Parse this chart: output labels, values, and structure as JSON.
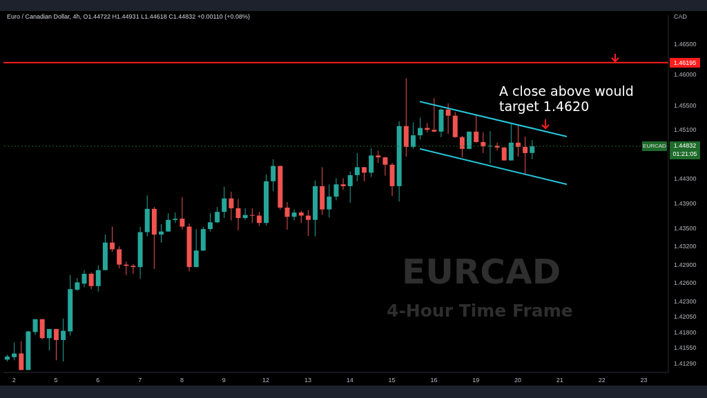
{
  "chart_data": {
    "type": "candlestick",
    "subtitle": "Euro / Canadian Dollar, 4h, O1.44722 H1.44931 L1.44618 C1.44832 +0.00110 (+0.08%)",
    "ylabel": "CAD",
    "categories": [
      null,
      "2",
      null,
      null,
      null,
      null,
      null,
      "5",
      null,
      null,
      null,
      null,
      null,
      "6",
      null,
      null,
      null,
      null,
      null,
      "7",
      null,
      null,
      null,
      null,
      null,
      "8",
      null,
      null,
      null,
      null,
      null,
      "9",
      null,
      null,
      null,
      null,
      null,
      "12",
      null,
      null,
      null,
      null,
      null,
      "13",
      null,
      null,
      null,
      null,
      null,
      "14",
      null,
      null,
      null,
      null,
      null,
      "15",
      null,
      null,
      null,
      null,
      null,
      "16",
      null,
      null,
      null,
      null,
      null,
      "19",
      null,
      null,
      null,
      null,
      null,
      "20",
      null,
      null,
      null,
      null,
      null,
      "21",
      null,
      null,
      null,
      null,
      null,
      "22",
      null,
      null,
      null,
      null,
      null,
      "23",
      null,
      null,
      null
    ],
    "ohlc": [
      [
        1.4135,
        1.4143,
        1.4132,
        1.414
      ],
      [
        1.4139,
        1.4163,
        1.4134,
        1.4145
      ],
      [
        1.4145,
        1.4165,
        1.4118,
        1.4118
      ],
      [
        1.4118,
        1.4182,
        1.4118,
        1.4181
      ],
      [
        1.418,
        1.4201,
        1.4175,
        1.4201
      ],
      [
        1.4201,
        1.4201,
        1.4168,
        1.417
      ],
      [
        1.417,
        1.4185,
        1.415,
        1.4185
      ],
      [
        1.4185,
        1.4185,
        1.4134,
        1.4167
      ],
      [
        1.4167,
        1.4202,
        1.4132,
        1.4182
      ],
      [
        1.4181,
        1.4273,
        1.4174,
        1.425
      ],
      [
        1.4249,
        1.4268,
        1.4247,
        1.4261
      ],
      [
        1.4259,
        1.4281,
        1.4253,
        1.4275
      ],
      [
        1.4275,
        1.4277,
        1.425,
        1.4255
      ],
      [
        1.4255,
        1.4289,
        1.4246,
        1.4281
      ],
      [
        1.4281,
        1.4339,
        1.4281,
        1.4326
      ],
      [
        1.4326,
        1.4352,
        1.4311,
        1.4315
      ],
      [
        1.4315,
        1.432,
        1.4284,
        1.429
      ],
      [
        1.429,
        1.4295,
        1.4273,
        1.4288
      ],
      [
        1.4288,
        1.4291,
        1.4275,
        1.4286
      ],
      [
        1.4286,
        1.4352,
        1.4267,
        1.4343
      ],
      [
        1.4343,
        1.4403,
        1.4336,
        1.4381
      ],
      [
        1.4381,
        1.4384,
        1.4283,
        1.4339
      ],
      [
        1.4339,
        1.4356,
        1.4326,
        1.4344
      ],
      [
        1.4344,
        1.4374,
        1.4344,
        1.4363
      ],
      [
        1.4363,
        1.4375,
        1.4358,
        1.4365
      ],
      [
        1.4365,
        1.44,
        1.4347,
        1.4352
      ],
      [
        1.4352,
        1.4357,
        1.4279,
        1.4286
      ],
      [
        1.4286,
        1.4348,
        1.4286,
        1.4313
      ],
      [
        1.4313,
        1.4352,
        1.4312,
        1.4348
      ],
      [
        1.4348,
        1.4374,
        1.4344,
        1.4359
      ],
      [
        1.4359,
        1.4384,
        1.4358,
        1.4376
      ],
      [
        1.4376,
        1.4417,
        1.4366,
        1.4398
      ],
      [
        1.4398,
        1.4409,
        1.4362,
        1.4382
      ],
      [
        1.4382,
        1.4397,
        1.4346,
        1.4366
      ],
      [
        1.4366,
        1.4382,
        1.4363,
        1.4371
      ],
      [
        1.4371,
        1.4382,
        1.4358,
        1.437
      ],
      [
        1.437,
        1.4376,
        1.4353,
        1.4358
      ],
      [
        1.4358,
        1.4437,
        1.4354,
        1.4426
      ],
      [
        1.4426,
        1.4462,
        1.441,
        1.4451
      ],
      [
        1.4451,
        1.4451,
        1.438,
        1.4383
      ],
      [
        1.4383,
        1.4392,
        1.4347,
        1.4368
      ],
      [
        1.4368,
        1.438,
        1.4362,
        1.4375
      ],
      [
        1.4375,
        1.4378,
        1.4358,
        1.437
      ],
      [
        1.437,
        1.4379,
        1.4337,
        1.4363
      ],
      [
        1.4363,
        1.4427,
        1.4336,
        1.4418
      ],
      [
        1.4418,
        1.4449,
        1.4371,
        1.438
      ],
      [
        1.438,
        1.4421,
        1.4367,
        1.4401
      ],
      [
        1.4401,
        1.4431,
        1.4395,
        1.4421
      ],
      [
        1.4421,
        1.4431,
        1.4412,
        1.4418
      ],
      [
        1.4418,
        1.4442,
        1.4391,
        1.4436
      ],
      [
        1.4436,
        1.4472,
        1.4426,
        1.4449
      ],
      [
        1.4449,
        1.4449,
        1.4426,
        1.444
      ],
      [
        1.444,
        1.448,
        1.4433,
        1.4468
      ],
      [
        1.4468,
        1.4476,
        1.4456,
        1.4465
      ],
      [
        1.4465,
        1.4466,
        1.4435,
        1.4453
      ],
      [
        1.4453,
        1.4456,
        1.4402,
        1.4418
      ],
      [
        1.4418,
        1.4524,
        1.4393,
        1.4516
      ],
      [
        1.4516,
        1.4594,
        1.4466,
        1.4482
      ],
      [
        1.4482,
        1.4522,
        1.4479,
        1.4501
      ],
      [
        1.4501,
        1.453,
        1.4494,
        1.4513
      ],
      [
        1.4513,
        1.4521,
        1.4506,
        1.451
      ],
      [
        1.451,
        1.4562,
        1.4506,
        1.4507
      ],
      [
        1.4507,
        1.4545,
        1.4498,
        1.4543
      ],
      [
        1.4543,
        1.4553,
        1.4503,
        1.4533
      ],
      [
        1.4533,
        1.4539,
        1.4497,
        1.4498
      ],
      [
        1.4498,
        1.45,
        1.4465,
        1.4479
      ],
      [
        1.4479,
        1.4507,
        1.4478,
        1.4507
      ],
      [
        1.4507,
        1.4535,
        1.4489,
        1.449
      ],
      [
        1.449,
        1.4506,
        1.4472,
        1.4483
      ],
      [
        1.4483,
        1.4508,
        1.4455,
        1.4484
      ],
      [
        1.4484,
        1.4489,
        1.4476,
        1.4481
      ],
      [
        1.4481,
        1.4482,
        1.446,
        1.446
      ],
      [
        1.446,
        1.4519,
        1.446,
        1.4489
      ],
      [
        1.4489,
        1.4518,
        1.4466,
        1.4482
      ],
      [
        1.4482,
        1.4499,
        1.4438,
        1.4472
      ],
      [
        1.44722,
        1.44931,
        1.44618,
        1.44832
      ],
      null,
      null,
      null,
      null,
      null,
      null,
      null,
      null,
      null,
      null,
      null,
      null,
      null,
      null,
      null,
      null,
      null,
      null,
      null
    ],
    "series": [
      {
        "type": "line",
        "color": "#26c6da",
        "values": [
          null,
          null,
          null,
          null,
          null,
          null,
          null,
          null,
          null,
          null,
          null,
          null,
          null,
          null,
          null,
          null,
          null,
          null,
          null,
          null,
          null,
          null,
          null,
          null,
          null,
          null,
          null,
          null,
          null,
          null,
          null,
          null,
          null,
          null,
          null,
          null,
          null,
          null,
          null,
          null,
          null,
          null,
          null,
          null,
          null,
          null,
          null,
          null,
          null,
          null,
          null,
          null,
          null,
          null,
          null,
          null,
          null,
          null,
          null,
          1.4556,
          null,
          null,
          null,
          null,
          null,
          null,
          null,
          null,
          null,
          null,
          null,
          null,
          null,
          null,
          null,
          null,
          null,
          null,
          null,
          null,
          1.4499,
          null,
          null,
          null,
          null,
          null,
          null,
          null,
          null,
          null,
          null,
          null,
          null,
          null,
          null
        ]
      },
      {
        "type": "line",
        "color": "#26c6da",
        "values": [
          null,
          null,
          null,
          null,
          null,
          null,
          null,
          null,
          null,
          null,
          null,
          null,
          null,
          null,
          null,
          null,
          null,
          null,
          null,
          null,
          null,
          null,
          null,
          null,
          null,
          null,
          null,
          null,
          null,
          null,
          null,
          null,
          null,
          null,
          null,
          null,
          null,
          null,
          null,
          null,
          null,
          null,
          null,
          null,
          null,
          null,
          null,
          null,
          null,
          null,
          null,
          null,
          null,
          null,
          null,
          null,
          null,
          null,
          null,
          1.4479,
          null,
          null,
          null,
          null,
          null,
          null,
          null,
          null,
          null,
          null,
          null,
          null,
          null,
          null,
          null,
          null,
          null,
          null,
          null,
          null,
          1.4421,
          null,
          null,
          null,
          null,
          null,
          null,
          null,
          null,
          null,
          null,
          null,
          null,
          null,
          null
        ]
      }
    ],
    "ylim": [
      1.4114,
      1.4697
    ],
    "yticks": [
      {
        "value": 1.4129,
        "label": "1.41290"
      },
      {
        "value": 1.4155,
        "label": "1.41550"
      },
      {
        "value": 1.418,
        "label": "1.41800"
      },
      {
        "value": 1.4205,
        "label": "1.42050"
      },
      {
        "value": 1.423,
        "label": "1.42300"
      },
      {
        "value": 1.426,
        "label": "1.42600"
      },
      {
        "value": 1.429,
        "label": "1.42900"
      },
      {
        "value": 1.432,
        "label": "1.43200"
      },
      {
        "value": 1.435,
        "label": "1.43500"
      },
      {
        "value": 1.439,
        "label": "1.43900"
      },
      {
        "value": 1.443,
        "label": "1.44300"
      },
      {
        "value": 1.451,
        "label": "1.45100"
      },
      {
        "value": 1.455,
        "label": "1.45500"
      },
      {
        "value": 1.46,
        "label": "1.46000"
      },
      {
        "value": 1.465,
        "label": "1.46500"
      }
    ],
    "ref_lines": [
      {
        "axis": "y",
        "value": 1.46195,
        "label": "1.46195",
        "color": "#ff1e1e",
        "line_style": "solid"
      },
      {
        "axis": "y",
        "value": 1.44832,
        "label": "EURCAD",
        "color": "#1e6b2a",
        "line_style": "dotted"
      }
    ],
    "annotations": [
      "A close above would\ntarget 1.4620",
      "EURCAD",
      "4-Hour Time Frame",
      "01:21:05",
      "1.44832"
    ]
  }
}
